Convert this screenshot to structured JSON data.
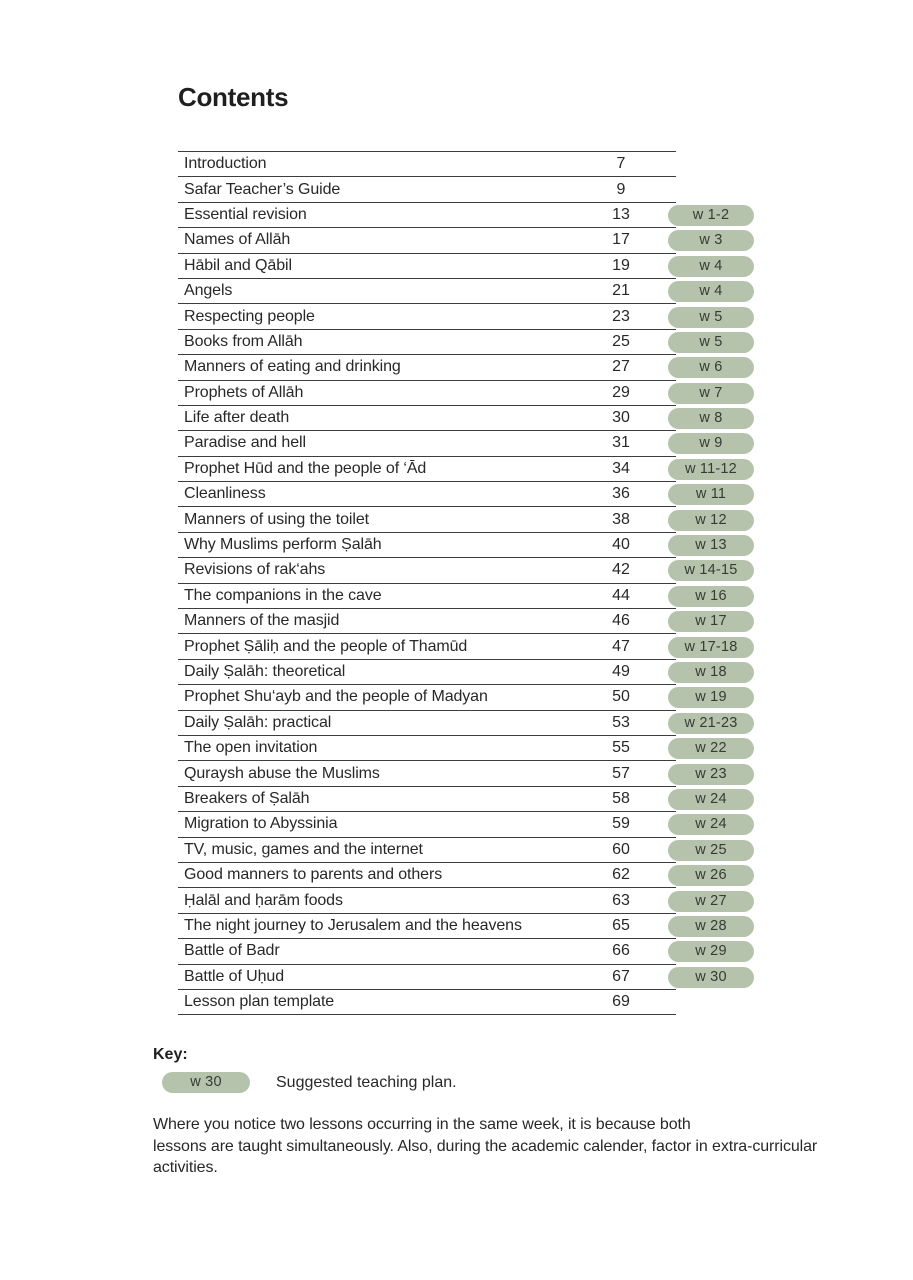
{
  "page": {
    "title": "Contents"
  },
  "colors": {
    "badge_bg": "#b5c3ac",
    "badge_text": "#363c35",
    "rule": "#3d3d3d",
    "text": "#282828"
  },
  "toc": {
    "rows": [
      {
        "title": "Introduction",
        "page": "7",
        "week": ""
      },
      {
        "title": "Safar Teacher’s Guide",
        "page": "9",
        "week": ""
      },
      {
        "title": "Essential revision",
        "page": "13",
        "week": "w 1-2"
      },
      {
        "title": "Names of Allāh",
        "page": "17",
        "week": "w 3"
      },
      {
        "title": "Hābil and Qābil",
        "page": "19",
        "week": "w 4"
      },
      {
        "title": "Angels",
        "page": "21",
        "week": "w 4"
      },
      {
        "title": "Respecting people",
        "page": "23",
        "week": "w 5"
      },
      {
        "title": "Books from Allāh",
        "page": "25",
        "week": "w 5"
      },
      {
        "title": "Manners of eating and drinking",
        "page": "27",
        "week": "w 6"
      },
      {
        "title": "Prophets of Allāh",
        "page": "29",
        "week": "w 7"
      },
      {
        "title": "Life after death",
        "page": "30",
        "week": "w 8"
      },
      {
        "title": "Paradise and hell",
        "page": "31",
        "week": "w 9"
      },
      {
        "title": "Prophet Hūd and the people of ‘Ād",
        "page": "34",
        "week": "w 11-12"
      },
      {
        "title": "Cleanliness",
        "page": "36",
        "week": "w 11"
      },
      {
        "title": "Manners of using the toilet",
        "page": "38",
        "week": "w 12"
      },
      {
        "title": "Why Muslims perform Ṣalāh",
        "page": "40",
        "week": "w 13"
      },
      {
        "title": "Revisions of rak‘ahs",
        "page": "42",
        "week": "w 14-15"
      },
      {
        "title": "The companions in the cave",
        "page": "44",
        "week": "w 16"
      },
      {
        "title": "Manners of the masjid",
        "page": "46",
        "week": "w 17"
      },
      {
        "title": "Prophet Ṣāliḥ and the people of Thamūd",
        "page": "47",
        "week": "w 17-18"
      },
      {
        "title": "Daily Ṣalāh: theoretical",
        "page": "49",
        "week": "w 18"
      },
      {
        "title": "Prophet Shu‘ayb and the people of Madyan",
        "page": "50",
        "week": "w 19"
      },
      {
        "title": "Daily Ṣalāh: practical",
        "page": "53",
        "week": "w 21-23"
      },
      {
        "title": "The open invitation",
        "page": "55",
        "week": "w 22"
      },
      {
        "title": "Quraysh abuse the Muslims",
        "page": "57",
        "week": "w 23"
      },
      {
        "title": "Breakers of Ṣalāh",
        "page": "58",
        "week": "w 24"
      },
      {
        "title": "Migration to Abyssinia",
        "page": "59",
        "week": "w 24"
      },
      {
        "title": "TV, music, games and the internet",
        "page": "60",
        "week": "w 25"
      },
      {
        "title": "Good manners to parents and others",
        "page": "62",
        "week": "w 26"
      },
      {
        "title": "Ḥalāl and ḥarām foods",
        "page": "63",
        "week": "w 27"
      },
      {
        "title": "The night journey to Jerusalem and the heavens",
        "page": "65",
        "week": "w 28"
      },
      {
        "title": "Battle of Badr",
        "page": "66",
        "week": "w 29"
      },
      {
        "title": "Battle of Uḥud",
        "page": "67",
        "week": "w 30"
      },
      {
        "title": "Lesson plan template",
        "page": "69",
        "week": ""
      }
    ]
  },
  "key": {
    "label": "Key:",
    "badge": "w 30",
    "description": "Suggested teaching plan."
  },
  "note": "Where you notice two lessons occurring in the same week, it is because both\nlessons are taught simultaneously. Also, during the academic calender, factor in extra-curricular\nactivities."
}
